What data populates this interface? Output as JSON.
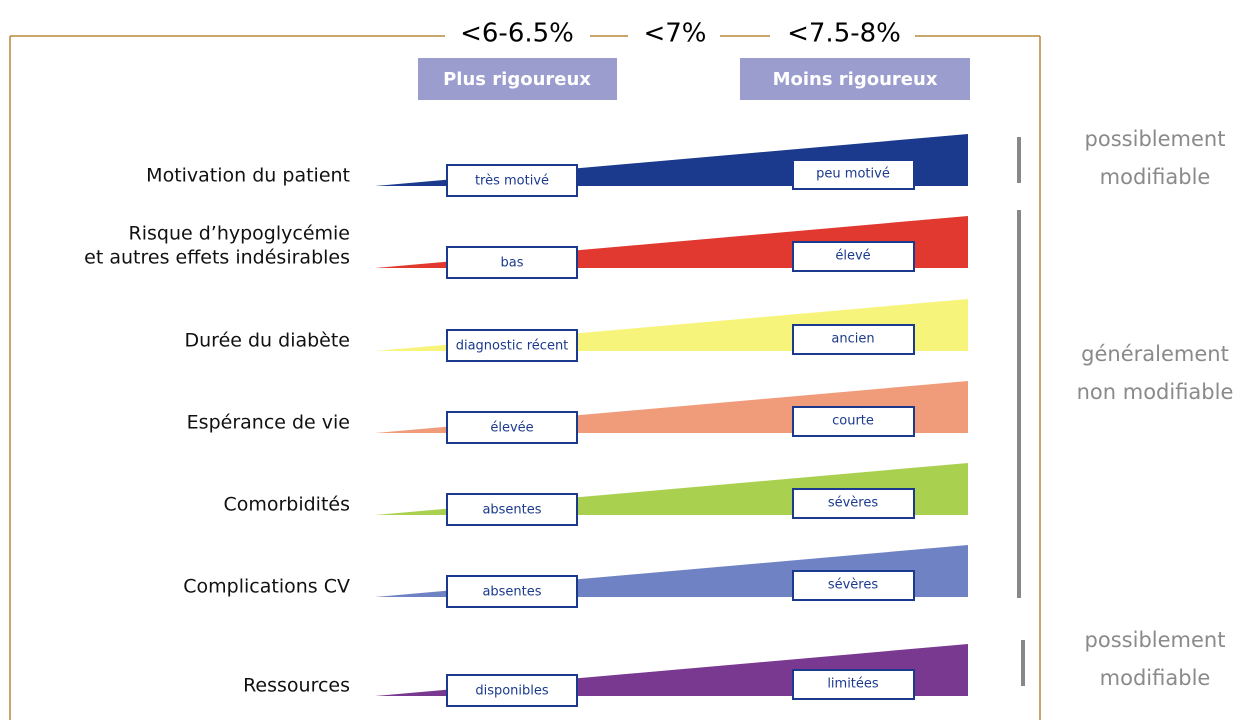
{
  "header": {
    "targets": [
      "<6-6.5%",
      "<7%",
      "<7.5-8%"
    ],
    "left_label": "Plus rigoureux",
    "right_label": "Moins rigoureux"
  },
  "rows": [
    {
      "label": [
        "Motivation du patient"
      ],
      "left": "très motivé",
      "right": "peu motivé",
      "color": "#1b3a8e"
    },
    {
      "label": [
        "Risque d’hypoglycémie",
        "et autres effets indésirables"
      ],
      "left": "bas",
      "right": "élevé",
      "color": "#e1392f"
    },
    {
      "label": [
        "Durée du diabète"
      ],
      "left": "diagnostic récent",
      "right": "ancien",
      "color": "#f7f47c"
    },
    {
      "label": [
        "Espérance de vie"
      ],
      "left": "élevée",
      "right": "courte",
      "color": "#f09b7a"
    },
    {
      "label": [
        "Comorbidités"
      ],
      "left": "absentes",
      "right": "sévères",
      "color": "#a9d04f"
    },
    {
      "label": [
        "Complications CV"
      ],
      "left": "absentes",
      "right": "sévères",
      "color": "#6f82c3"
    },
    {
      "label": [
        "Ressources"
      ],
      "left": "disponibles",
      "right": "limitées",
      "color": "#7a3990"
    }
  ],
  "groups": [
    {
      "lines": [
        "possiblement",
        "modifiable"
      ]
    },
    {
      "lines": [
        "généralement",
        "non modifiable"
      ]
    },
    {
      "lines": [
        "possiblement",
        "modifiable"
      ]
    }
  ]
}
